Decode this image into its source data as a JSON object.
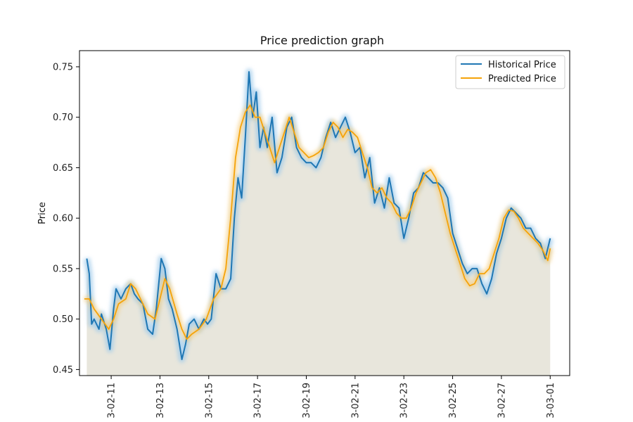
{
  "chart_data": {
    "type": "line",
    "title": "Price prediction graph",
    "xlabel": "",
    "ylabel": "Price",
    "x_axis": {
      "type": "date",
      "range_days": [
        9.7,
        29.8
      ],
      "tick_days": [
        11,
        13,
        15,
        17,
        19,
        21,
        23,
        25,
        27,
        29
      ],
      "tick_labels": [
        "3-02-11",
        "3-02-13",
        "3-02-15",
        "3-02-17",
        "3-02-19",
        "3-02-21",
        "3-02-23",
        "3-02-25",
        "3-02-27",
        "3-03-01"
      ]
    },
    "ylim": [
      0.444,
      0.766
    ],
    "y_ticks": [
      0.45,
      0.5,
      0.55,
      0.6,
      0.65,
      0.7,
      0.75
    ],
    "y_tick_labels": [
      "0.45",
      "0.50",
      "0.55",
      "0.60",
      "0.65",
      "0.70",
      "0.75"
    ],
    "grid": false,
    "legend_position": "top-right",
    "fill_under_curve": true,
    "series": [
      {
        "name": "Historical Price",
        "color": "#1f77b4",
        "x_days": [
          10.0,
          10.1,
          10.2,
          10.3,
          10.5,
          10.6,
          10.8,
          10.95,
          11.1,
          11.2,
          11.4,
          11.6,
          11.8,
          11.95,
          12.1,
          12.3,
          12.5,
          12.7,
          12.85,
          13.05,
          13.2,
          13.35,
          13.5,
          13.7,
          13.9,
          14.05,
          14.2,
          14.4,
          14.6,
          14.8,
          14.95,
          15.1,
          15.3,
          15.5,
          15.7,
          15.9,
          16.05,
          16.2,
          16.35,
          16.5,
          16.65,
          16.8,
          16.95,
          17.1,
          17.25,
          17.4,
          17.6,
          17.8,
          18.0,
          18.2,
          18.4,
          18.6,
          18.8,
          19.0,
          19.2,
          19.4,
          19.6,
          19.8,
          20.0,
          20.2,
          20.4,
          20.6,
          20.8,
          21.0,
          21.2,
          21.4,
          21.6,
          21.8,
          22.0,
          22.2,
          22.4,
          22.6,
          22.8,
          23.0,
          23.2,
          23.4,
          23.6,
          23.8,
          24.0,
          24.2,
          24.4,
          24.6,
          24.8,
          25.0,
          25.2,
          25.4,
          25.6,
          25.8,
          26.0,
          26.2,
          26.4,
          26.6,
          26.8,
          27.0,
          27.2,
          27.4,
          27.6,
          27.8,
          28.0,
          28.2,
          28.4,
          28.6,
          28.8,
          29.0
        ],
        "values": [
          0.56,
          0.545,
          0.495,
          0.5,
          0.49,
          0.505,
          0.49,
          0.47,
          0.51,
          0.53,
          0.52,
          0.53,
          0.535,
          0.525,
          0.52,
          0.515,
          0.49,
          0.485,
          0.51,
          0.56,
          0.55,
          0.52,
          0.51,
          0.49,
          0.46,
          0.475,
          0.495,
          0.5,
          0.49,
          0.5,
          0.495,
          0.5,
          0.545,
          0.53,
          0.53,
          0.54,
          0.6,
          0.64,
          0.62,
          0.68,
          0.745,
          0.7,
          0.725,
          0.67,
          0.69,
          0.67,
          0.7,
          0.645,
          0.66,
          0.69,
          0.7,
          0.67,
          0.66,
          0.655,
          0.655,
          0.65,
          0.66,
          0.68,
          0.695,
          0.68,
          0.69,
          0.7,
          0.685,
          0.665,
          0.67,
          0.64,
          0.66,
          0.615,
          0.63,
          0.61,
          0.64,
          0.615,
          0.61,
          0.58,
          0.6,
          0.625,
          0.63,
          0.645,
          0.64,
          0.635,
          0.635,
          0.63,
          0.62,
          0.585,
          0.57,
          0.555,
          0.545,
          0.55,
          0.55,
          0.535,
          0.525,
          0.54,
          0.565,
          0.58,
          0.6,
          0.61,
          0.605,
          0.6,
          0.59,
          0.59,
          0.58,
          0.575,
          0.56,
          0.58
        ]
      },
      {
        "name": "Predicted Price",
        "color": "#f5a30a",
        "x_days": [
          9.9,
          10.1,
          10.3,
          10.6,
          10.9,
          11.1,
          11.3,
          11.6,
          11.8,
          12.0,
          12.3,
          12.5,
          12.8,
          13.0,
          13.2,
          13.4,
          13.7,
          13.9,
          14.1,
          14.3,
          14.6,
          14.9,
          15.2,
          15.5,
          15.7,
          15.9,
          16.1,
          16.3,
          16.5,
          16.7,
          16.9,
          17.1,
          17.3,
          17.5,
          17.7,
          17.9,
          18.1,
          18.3,
          18.5,
          18.7,
          18.9,
          19.1,
          19.3,
          19.5,
          19.7,
          19.9,
          20.1,
          20.3,
          20.5,
          20.7,
          20.9,
          21.1,
          21.3,
          21.5,
          21.7,
          21.9,
          22.1,
          22.3,
          22.5,
          22.7,
          22.9,
          23.1,
          23.3,
          23.5,
          23.7,
          23.9,
          24.1,
          24.3,
          24.5,
          24.7,
          24.9,
          25.1,
          25.3,
          25.5,
          25.7,
          25.9,
          26.1,
          26.3,
          26.5,
          26.7,
          26.9,
          27.1,
          27.3,
          27.5,
          27.7,
          27.9,
          28.1,
          28.3,
          28.5,
          28.7,
          28.9,
          29.0
        ],
        "values": [
          0.52,
          0.52,
          0.51,
          0.5,
          0.49,
          0.5,
          0.515,
          0.52,
          0.535,
          0.53,
          0.515,
          0.505,
          0.5,
          0.52,
          0.54,
          0.53,
          0.505,
          0.49,
          0.48,
          0.485,
          0.49,
          0.5,
          0.52,
          0.53,
          0.55,
          0.6,
          0.66,
          0.69,
          0.705,
          0.712,
          0.7,
          0.7,
          0.685,
          0.67,
          0.655,
          0.67,
          0.685,
          0.7,
          0.685,
          0.67,
          0.665,
          0.66,
          0.662,
          0.665,
          0.67,
          0.685,
          0.695,
          0.69,
          0.68,
          0.688,
          0.685,
          0.68,
          0.665,
          0.65,
          0.63,
          0.625,
          0.63,
          0.62,
          0.615,
          0.605,
          0.6,
          0.6,
          0.61,
          0.625,
          0.635,
          0.645,
          0.648,
          0.64,
          0.625,
          0.605,
          0.585,
          0.57,
          0.555,
          0.54,
          0.533,
          0.535,
          0.545,
          0.545,
          0.55,
          0.565,
          0.58,
          0.6,
          0.608,
          0.607,
          0.6,
          0.59,
          0.585,
          0.58,
          0.575,
          0.568,
          0.558,
          0.57
        ]
      }
    ]
  }
}
